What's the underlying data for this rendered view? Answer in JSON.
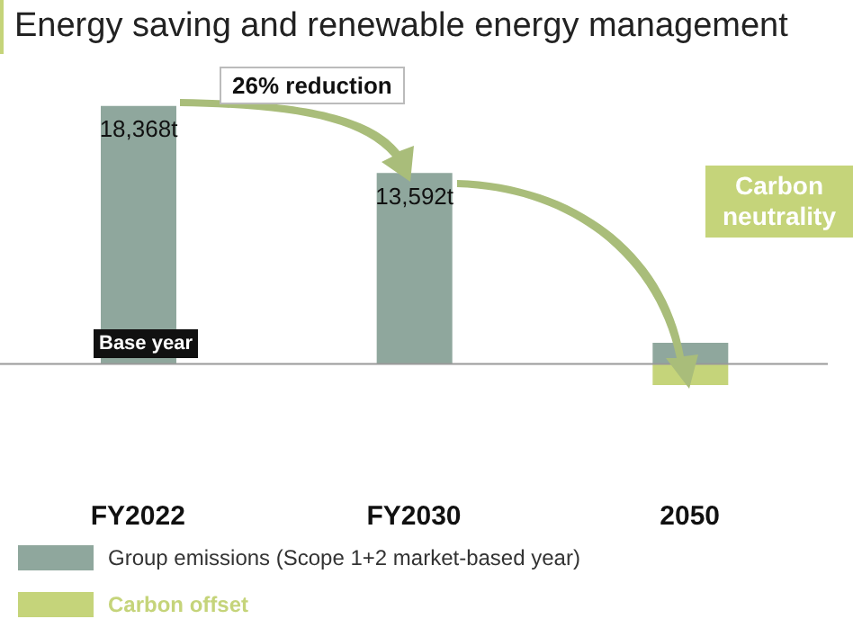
{
  "chart_data": {
    "type": "bar",
    "title": "Energy saving and renewable energy management",
    "categories": [
      "FY2022",
      "FY2030",
      "2050"
    ],
    "series": [
      {
        "name": "Group emissions (Scope 1+2 market-based year)",
        "color": "#8fa79d",
        "values": [
          18368,
          13592,
          1500
        ],
        "value_labels": [
          "18,368t",
          "13,592t",
          null
        ]
      },
      {
        "name": "Carbon offset",
        "color": "#c5d47a",
        "values": [
          null,
          null,
          -1500
        ]
      }
    ],
    "stacked": true,
    "tick_labels": "x",
    "legend": "bottom left",
    "annotations": [
      "26% reduction",
      "Carbon neutrality",
      "Base year"
    ]
  }
}
